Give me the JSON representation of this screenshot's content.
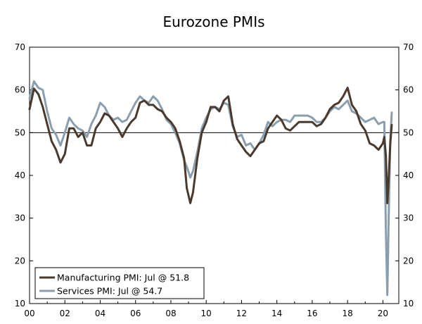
{
  "chart_data": {
    "type": "line",
    "title": "Eurozone PMIs",
    "xlabel": "",
    "ylabel": "",
    "xlim": [
      2000,
      2020.9
    ],
    "ylim": [
      10,
      70
    ],
    "yticks": [
      10,
      20,
      30,
      40,
      50,
      60,
      70
    ],
    "ytick_labels": [
      "10",
      "20",
      "30",
      "40",
      "50",
      "60",
      "70"
    ],
    "xticks": [
      2000,
      2002,
      2004,
      2006,
      2008,
      2010,
      2012,
      2014,
      2016,
      2018,
      2020
    ],
    "xtick_labels": [
      "00",
      "02",
      "04",
      "06",
      "08",
      "10",
      "12",
      "14",
      "16",
      "18",
      "20"
    ],
    "reference_line": 50,
    "grid": false,
    "legend_position": "bottom-left",
    "series": [
      {
        "name": "Manufacturing PMI: Jul @ 51.8",
        "color": "#4a3a2e",
        "x": [
          2000.0,
          2000.25,
          2000.5,
          2000.75,
          2001.0,
          2001.25,
          2001.5,
          2001.75,
          2002.0,
          2002.25,
          2002.5,
          2002.75,
          2003.0,
          2003.25,
          2003.5,
          2003.75,
          2004.0,
          2004.25,
          2004.5,
          2004.75,
          2005.0,
          2005.25,
          2005.5,
          2005.75,
          2006.0,
          2006.25,
          2006.5,
          2006.75,
          2007.0,
          2007.25,
          2007.5,
          2007.75,
          2008.0,
          2008.25,
          2008.5,
          2008.75,
          2008.9,
          2009.1,
          2009.25,
          2009.5,
          2009.75,
          2010.0,
          2010.25,
          2010.5,
          2010.75,
          2011.0,
          2011.25,
          2011.5,
          2011.75,
          2012.0,
          2012.25,
          2012.5,
          2012.75,
          2013.0,
          2013.25,
          2013.5,
          2013.75,
          2014.0,
          2014.25,
          2014.5,
          2014.75,
          2015.0,
          2015.25,
          2015.5,
          2015.75,
          2016.0,
          2016.25,
          2016.5,
          2016.75,
          2017.0,
          2017.25,
          2017.5,
          2017.75,
          2018.0,
          2018.25,
          2018.5,
          2018.75,
          2019.0,
          2019.25,
          2019.5,
          2019.75,
          2020.0,
          2020.08,
          2020.17,
          2020.25,
          2020.33,
          2020.42,
          2020.5
        ],
        "values": [
          55.5,
          60.3,
          59.0,
          56.0,
          52.0,
          48.0,
          46.0,
          43.0,
          45.0,
          51.0,
          51.0,
          49.0,
          50.0,
          47.0,
          47.0,
          51.0,
          52.5,
          54.5,
          54.0,
          52.5,
          51.0,
          49.0,
          51.0,
          52.5,
          53.5,
          57.0,
          57.5,
          56.5,
          56.5,
          55.5,
          55.0,
          53.5,
          52.5,
          51.0,
          48.0,
          44.0,
          37.0,
          33.5,
          36.0,
          44.0,
          50.0,
          52.5,
          56.0,
          56.0,
          55.0,
          57.5,
          58.5,
          52.0,
          48.5,
          47.0,
          45.5,
          44.5,
          46.0,
          47.5,
          48.0,
          51.0,
          52.5,
          54.0,
          53.0,
          51.0,
          50.5,
          51.5,
          52.5,
          52.5,
          52.5,
          52.5,
          51.5,
          52.0,
          53.5,
          55.5,
          56.5,
          57.0,
          58.5,
          60.5,
          56.5,
          55.0,
          52.0,
          50.5,
          47.5,
          47.0,
          46.0,
          47.5,
          49.0,
          44.5,
          33.5,
          39.5,
          47.5,
          51.8
        ]
      },
      {
        "name": "Services PMI: Jul @ 54.7",
        "color": "#8a9eae",
        "x": [
          2000.0,
          2000.25,
          2000.5,
          2000.75,
          2001.0,
          2001.25,
          2001.5,
          2001.75,
          2002.0,
          2002.25,
          2002.5,
          2002.75,
          2003.0,
          2003.25,
          2003.5,
          2003.75,
          2004.0,
          2004.25,
          2004.5,
          2004.75,
          2005.0,
          2005.25,
          2005.5,
          2005.75,
          2006.0,
          2006.25,
          2006.5,
          2006.75,
          2007.0,
          2007.25,
          2007.5,
          2007.75,
          2008.0,
          2008.25,
          2008.5,
          2008.75,
          2008.9,
          2009.1,
          2009.25,
          2009.5,
          2009.75,
          2010.0,
          2010.25,
          2010.5,
          2010.75,
          2011.0,
          2011.25,
          2011.5,
          2011.75,
          2012.0,
          2012.25,
          2012.5,
          2012.75,
          2013.0,
          2013.25,
          2013.5,
          2013.75,
          2014.0,
          2014.25,
          2014.5,
          2014.75,
          2015.0,
          2015.25,
          2015.5,
          2015.75,
          2016.0,
          2016.25,
          2016.5,
          2016.75,
          2017.0,
          2017.25,
          2017.5,
          2017.75,
          2018.0,
          2018.25,
          2018.5,
          2018.75,
          2019.0,
          2019.25,
          2019.5,
          2019.75,
          2020.0,
          2020.08,
          2020.17,
          2020.25,
          2020.33,
          2020.42,
          2020.5
        ],
        "values": [
          58.0,
          62.0,
          60.5,
          60.0,
          55.0,
          51.0,
          49.5,
          47.0,
          50.0,
          53.5,
          52.0,
          51.0,
          50.5,
          49.0,
          52.0,
          54.0,
          57.0,
          56.0,
          54.0,
          53.0,
          53.5,
          52.5,
          53.0,
          55.0,
          57.0,
          58.5,
          57.5,
          57.0,
          58.5,
          57.5,
          55.5,
          53.0,
          52.0,
          50.0,
          47.5,
          43.5,
          42.0,
          39.5,
          41.0,
          45.5,
          51.0,
          53.5,
          55.5,
          56.0,
          55.5,
          57.0,
          56.5,
          51.5,
          49.0,
          49.5,
          47.0,
          47.5,
          46.0,
          47.5,
          49.5,
          52.5,
          51.5,
          52.5,
          53.0,
          53.0,
          52.5,
          54.0,
          54.0,
          54.0,
          54.0,
          53.5,
          52.5,
          52.5,
          53.5,
          55.0,
          56.0,
          55.5,
          56.5,
          57.5,
          55.0,
          54.5,
          53.5,
          52.5,
          53.0,
          53.5,
          52.0,
          52.5,
          52.5,
          26.5,
          12.0,
          30.5,
          48.0,
          54.7
        ]
      }
    ]
  }
}
